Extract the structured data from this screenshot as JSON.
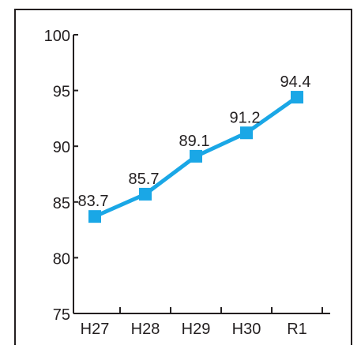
{
  "chart_data": {
    "type": "line",
    "title": "",
    "xlabel": "",
    "ylabel": "",
    "categories": [
      "H27",
      "H28",
      "H29",
      "H30",
      "R1"
    ],
    "values": [
      83.7,
      85.7,
      89.1,
      91.2,
      94.4
    ],
    "data_labels": [
      "83.7",
      "85.7",
      "89.1",
      "91.2",
      "94.4"
    ],
    "ylim": [
      75,
      100
    ],
    "yticks": [
      75,
      80,
      85,
      90,
      95,
      100
    ],
    "ytick_labels": [
      "75",
      "80",
      "85",
      "90",
      "95",
      "100"
    ],
    "grid": false,
    "legend": "none",
    "marker": "square",
    "colors": {
      "line": "#1aa7e6",
      "marker": "#1aa7e6",
      "axis": "#231f20",
      "border": "#231f20"
    }
  }
}
